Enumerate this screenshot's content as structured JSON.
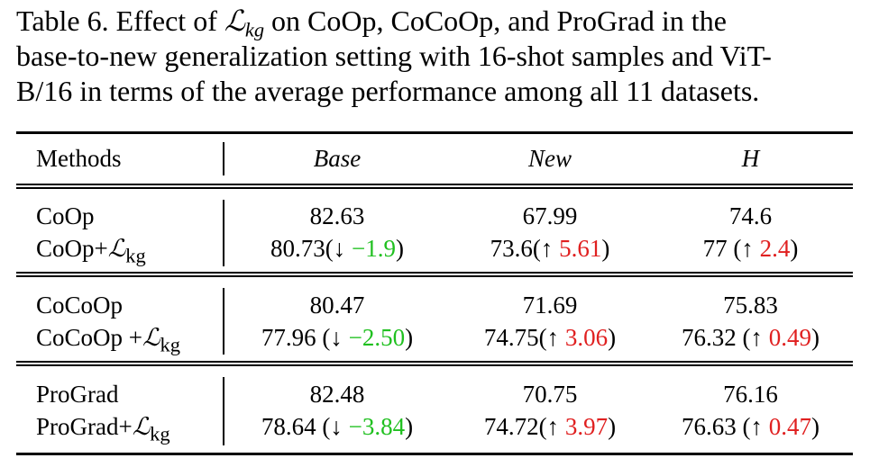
{
  "caption": {
    "prefix": "Table 6.  Effect of ",
    "symbol": "ℒ",
    "subscript": "kg",
    "line1_rest": " on CoOp, CoCoOp, and ProGrad in the",
    "line2": "base-to-new generalization setting with 16-shot samples and ViT-",
    "line3": "B/16 in terms of the average performance among all 11 datasets."
  },
  "table": {
    "headers": {
      "methods": "Methods",
      "base": "Base",
      "new": "New",
      "h": "H"
    },
    "loss_symbol": "ℒ",
    "loss_subscript": "kg",
    "groups": [
      {
        "rows": [
          {
            "method": "CoOp",
            "base": "82.63",
            "new": "67.99",
            "h": "74.6"
          },
          {
            "method": "CoOp+",
            "base_val": "80.73(",
            "base_arrow": "↓ ",
            "base_delta": "−1.9",
            "base_close": ")",
            "new_val": "73.6(",
            "new_arrow": "↑ ",
            "new_delta": "5.61",
            "new_close": ")",
            "h_val": "77 (",
            "h_arrow": "↑ ",
            "h_delta": "2.4",
            "h_close": ")"
          }
        ]
      },
      {
        "rows": [
          {
            "method": "CoCoOp",
            "base": "80.47",
            "new": "71.69",
            "h": "75.83"
          },
          {
            "method": "CoCoOp +",
            "base_val": "77.96 (",
            "base_arrow": "↓ ",
            "base_delta": "−2.50",
            "base_close": ")",
            "new_val": "74.75(",
            "new_arrow": "↑ ",
            "new_delta": "3.06",
            "new_close": ")",
            "h_val": "76.32 (",
            "h_arrow": "↑ ",
            "h_delta": "0.49",
            "h_close": ")"
          }
        ]
      },
      {
        "rows": [
          {
            "method": "ProGrad",
            "base": "82.48",
            "new": "70.75",
            "h": "76.16"
          },
          {
            "method": "ProGrad+",
            "base_val": "78.64 (",
            "base_arrow": "↓ ",
            "base_delta": "−3.84",
            "base_close": ")",
            "new_val": "74.72(",
            "new_arrow": "↑ ",
            "new_delta": "3.97",
            "new_close": ")",
            "h_val": "76.63 (",
            "h_arrow": "↑ ",
            "h_delta": "0.47",
            "h_close": ")"
          }
        ]
      }
    ],
    "colors": {
      "decrease": "#20c020",
      "increase": "#e02020"
    }
  }
}
